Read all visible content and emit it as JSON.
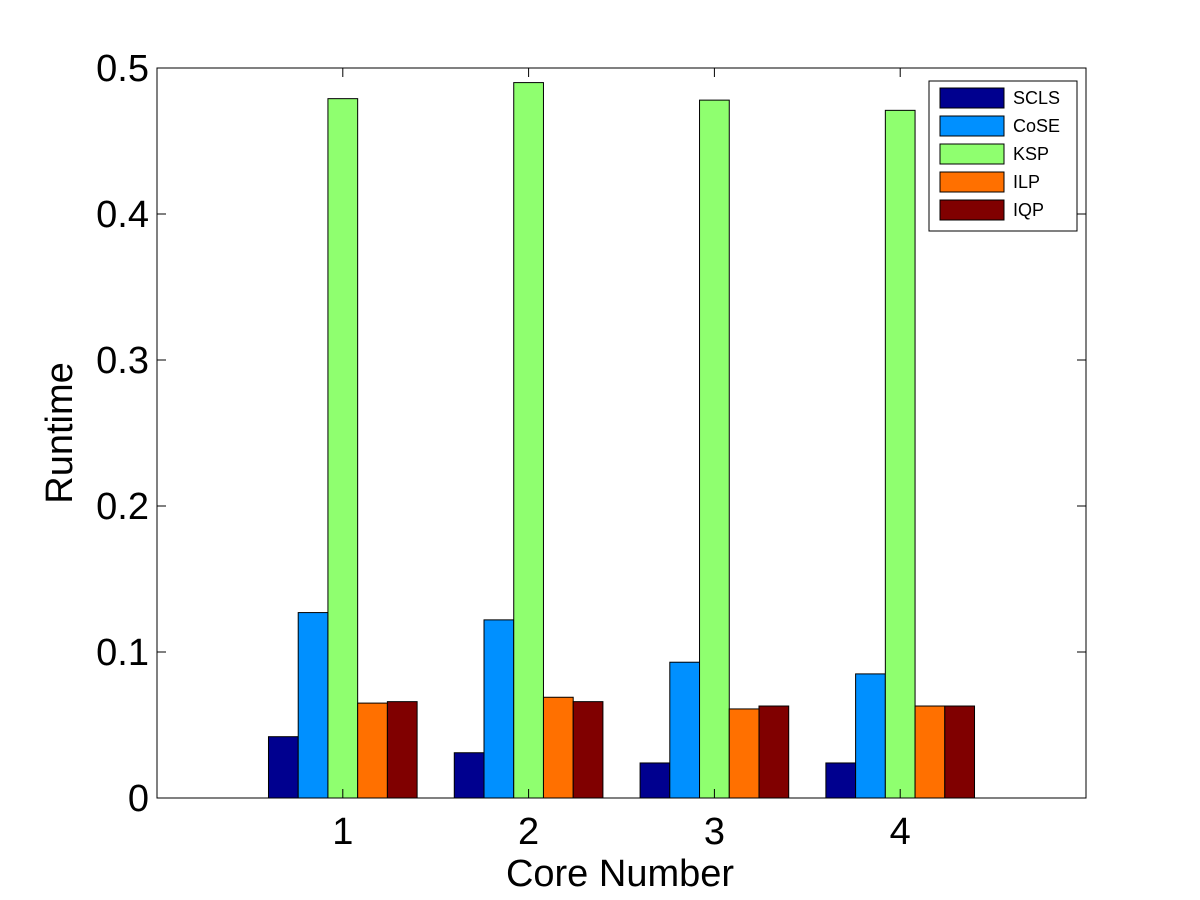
{
  "chart_data": {
    "type": "bar",
    "title": "",
    "xlabel": "Core Number",
    "ylabel": "Runtime",
    "categories": [
      "1",
      "2",
      "3",
      "4"
    ],
    "xlim": [
      0,
      5
    ],
    "ylim": [
      0,
      0.5
    ],
    "yticks": [
      0,
      0.1,
      0.2,
      0.3,
      0.4,
      0.5
    ],
    "ytick_labels": [
      "0",
      "0.1",
      "0.2",
      "0.3",
      "0.4",
      "0.5"
    ],
    "grid": false,
    "legend_position": "top-right",
    "series": [
      {
        "name": "SCLS",
        "color": "#00008f",
        "values": [
          0.042,
          0.031,
          0.024,
          0.024
        ]
      },
      {
        "name": "CoSE",
        "color": "#0090ff",
        "values": [
          0.127,
          0.122,
          0.093,
          0.085
        ]
      },
      {
        "name": "KSP",
        "color": "#8fff6f",
        "values": [
          0.479,
          0.49,
          0.478,
          0.471
        ]
      },
      {
        "name": "ILP",
        "color": "#ff7000",
        "values": [
          0.065,
          0.069,
          0.061,
          0.063
        ]
      },
      {
        "name": "IQP",
        "color": "#800000",
        "values": [
          0.066,
          0.066,
          0.063,
          0.063
        ]
      }
    ]
  }
}
